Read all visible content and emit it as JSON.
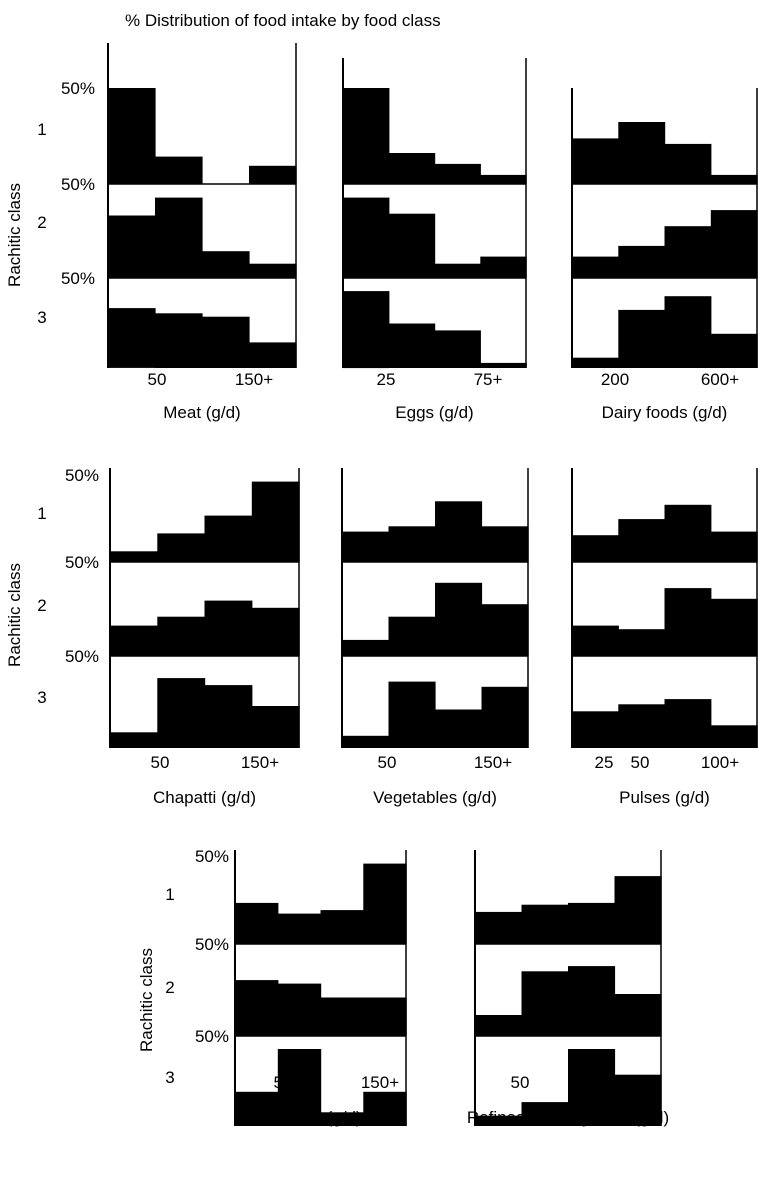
{
  "title": "% Distribution of food intake by food class",
  "row_axis_label": "Rachitic class",
  "class_labels": [
    "1",
    "2",
    "3"
  ],
  "band_marker": "50%",
  "chart_data": [
    {
      "type": "bar",
      "panel": "meat",
      "xlabel": "Meat (g/d)",
      "tick_labels": [
        "50",
        "150+"
      ],
      "series": [
        {
          "name": "1",
          "values": [
            75,
            15,
            0,
            10
          ]
        },
        {
          "name": "2",
          "values": [
            35,
            45,
            15,
            8
          ]
        },
        {
          "name": "3",
          "values": [
            35,
            32,
            30,
            15
          ]
        }
      ],
      "ylim": [
        0,
        100
      ]
    },
    {
      "type": "bar",
      "panel": "eggs",
      "xlabel": "Eggs (g/d)",
      "tick_labels": [
        "25",
        "75+"
      ],
      "series": [
        {
          "name": "1",
          "values": [
            65,
            17,
            11,
            5
          ]
        },
        {
          "name": "2",
          "values": [
            45,
            36,
            8,
            12
          ]
        },
        {
          "name": "3",
          "values": [
            45,
            26,
            22,
            3
          ]
        }
      ],
      "ylim": [
        0,
        100
      ]
    },
    {
      "type": "bar",
      "panel": "dairy",
      "xlabel": "Dairy foods (g/d)",
      "tick_labels": [
        "200",
        "600+"
      ],
      "series": [
        {
          "name": "1",
          "values": [
            25,
            34,
            22,
            5
          ]
        },
        {
          "name": "2",
          "values": [
            12,
            18,
            29,
            38
          ]
        },
        {
          "name": "3",
          "values": [
            6,
            34,
            42,
            20
          ]
        }
      ],
      "ylim": [
        0,
        100
      ]
    },
    {
      "type": "bar",
      "panel": "chapatti",
      "xlabel": "Chapatti (g/d)",
      "tick_labels": [
        "50",
        "150+"
      ],
      "series": [
        {
          "name": "1",
          "values": [
            6,
            16,
            26,
            45
          ]
        },
        {
          "name": "2",
          "values": [
            17,
            22,
            31,
            27
          ]
        },
        {
          "name": "3",
          "values": [
            9,
            40,
            36,
            24
          ]
        }
      ],
      "ylim": [
        0,
        100
      ]
    },
    {
      "type": "bar",
      "panel": "vegetables",
      "xlabel": "Vegetables (g/d)",
      "tick_labels": [
        "50",
        "150+"
      ],
      "series": [
        {
          "name": "1",
          "values": [
            17,
            20,
            34,
            20
          ]
        },
        {
          "name": "2",
          "values": [
            9,
            22,
            41,
            29
          ]
        },
        {
          "name": "3",
          "values": [
            7,
            38,
            22,
            35
          ]
        }
      ],
      "ylim": [
        0,
        100
      ]
    },
    {
      "type": "bar",
      "panel": "pulses",
      "xlabel": "Pulses (g/d)",
      "tick_labels": [
        "25",
        "50",
        "100+"
      ],
      "series": [
        {
          "name": "1",
          "values": [
            15,
            24,
            32,
            17
          ]
        },
        {
          "name": "2",
          "values": [
            17,
            15,
            38,
            32
          ]
        },
        {
          "name": "3",
          "values": [
            21,
            25,
            28,
            13
          ]
        }
      ],
      "ylim": [
        0,
        100
      ]
    },
    {
      "type": "bar",
      "panel": "fruits",
      "xlabel": "Fruits (g/d)",
      "tick_labels": [
        "50",
        "150+"
      ],
      "series": [
        {
          "name": "1",
          "values": [
            23,
            17,
            19,
            45
          ]
        },
        {
          "name": "2",
          "values": [
            32,
            30,
            22,
            22
          ]
        },
        {
          "name": "3",
          "values": [
            20,
            45,
            8,
            20
          ]
        }
      ],
      "ylim": [
        0,
        100
      ]
    },
    {
      "type": "bar",
      "panel": "refined-carbohydrate",
      "xlabel": "Refined carbohydrate (g/d)",
      "tick_labels": [
        "50",
        "150+"
      ],
      "series": [
        {
          "name": "1",
          "values": [
            18,
            22,
            23,
            38
          ]
        },
        {
          "name": "2",
          "values": [
            12,
            37,
            40,
            24
          ]
        },
        {
          "name": "3",
          "values": [
            6,
            14,
            45,
            30
          ]
        }
      ],
      "ylim": [
        0,
        100
      ]
    }
  ]
}
